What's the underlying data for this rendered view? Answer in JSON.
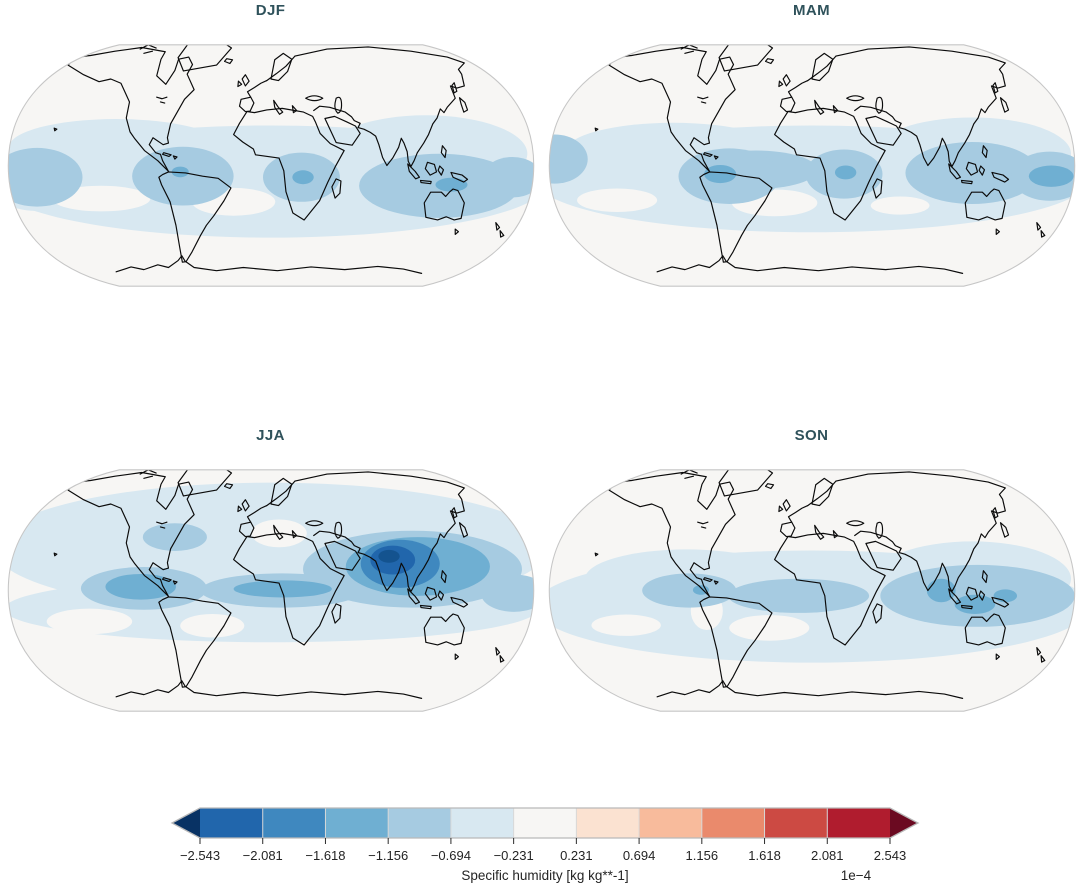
{
  "chart_data": {
    "type": "heatmap",
    "subtype": "filled_contour_world_maps",
    "projection": "robinson",
    "title": "",
    "variable": "Specific humidity",
    "units": "kg kg**-1",
    "scale_factor": "1e-4",
    "contour_levels_1e4": [
      -2.543,
      -2.081,
      -1.618,
      -1.156,
      -0.694,
      -0.231,
      0.231,
      0.694,
      1.156,
      1.618,
      2.081,
      2.543
    ],
    "layout": {
      "title_color": "#2f525b",
      "grid": "2x2",
      "legend_position": "bottom-colorbar"
    },
    "map": {
      "background": "#f7f6f4",
      "outline_color": "#c6c6c6",
      "coastline_color": "#0b0b0b",
      "level_colors": [
        "#f7f6f4",
        "#d8e8f1",
        "#a6cbe1",
        "#6fafd2",
        "#3f88bf",
        "#2166ac",
        "#14538f"
      ]
    },
    "panels": [
      {
        "title": "DJF",
        "features": [
          [
            1,
            500,
            280,
            520,
            105
          ],
          [
            1,
            210,
            215,
            200,
            52
          ],
          [
            1,
            790,
            228,
            190,
            72
          ],
          [
            1,
            60,
            270,
            95,
            65
          ],
          [
            0,
            430,
            318,
            78,
            26
          ],
          [
            0,
            182,
            312,
            92,
            24
          ],
          [
            2,
            62,
            272,
            85,
            55
          ],
          [
            2,
            335,
            270,
            95,
            55
          ],
          [
            2,
            557,
            272,
            72,
            46
          ],
          [
            2,
            815,
            288,
            150,
            60
          ],
          [
            2,
            952,
            272,
            55,
            38
          ],
          [
            3,
            330,
            262,
            16,
            10
          ],
          [
            3,
            560,
            272,
            20,
            13
          ],
          [
            3,
            838,
            286,
            30,
            13
          ]
        ]
      },
      {
        "title": "MAM",
        "features": [
          [
            1,
            500,
            275,
            520,
            100
          ],
          [
            1,
            240,
            222,
            200,
            52
          ],
          [
            1,
            800,
            228,
            185,
            68
          ],
          [
            0,
            430,
            320,
            80,
            25
          ],
          [
            0,
            135,
            315,
            75,
            22
          ],
          [
            0,
            665,
            325,
            55,
            17
          ],
          [
            2,
            18,
            238,
            62,
            46
          ],
          [
            2,
            395,
            258,
            115,
            36
          ],
          [
            2,
            345,
            270,
            95,
            52
          ],
          [
            2,
            560,
            266,
            72,
            46
          ],
          [
            2,
            800,
            264,
            125,
            58
          ],
          [
            2,
            945,
            270,
            72,
            46
          ],
          [
            3,
            328,
            266,
            30,
            17
          ],
          [
            3,
            563,
            263,
            20,
            13
          ],
          [
            3,
            948,
            270,
            42,
            20
          ]
        ]
      },
      {
        "title": "JJA",
        "features": [
          [
            1,
            500,
            170,
            520,
            122
          ],
          [
            1,
            500,
            285,
            500,
            62
          ],
          [
            0,
            515,
            143,
            52,
            26
          ],
          [
            0,
            160,
            308,
            80,
            24
          ],
          [
            0,
            390,
            316,
            60,
            22
          ],
          [
            2,
            320,
            150,
            60,
            26
          ],
          [
            2,
            262,
            246,
            118,
            40
          ],
          [
            2,
            520,
            250,
            152,
            32
          ],
          [
            2,
            765,
            210,
            205,
            72
          ],
          [
            2,
            955,
            255,
            62,
            35
          ],
          [
            3,
            256,
            243,
            66,
            24
          ],
          [
            3,
            522,
            247,
            92,
            16
          ],
          [
            3,
            775,
            205,
            135,
            55
          ],
          [
            4,
            742,
            200,
            74,
            45
          ],
          [
            5,
            728,
            193,
            42,
            27
          ],
          [
            6,
            721,
            186,
            20,
            12
          ]
        ]
      },
      {
        "title": "SON",
        "features": [
          [
            1,
            500,
            280,
            520,
            105
          ],
          [
            1,
            265,
            228,
            190,
            55
          ],
          [
            1,
            800,
            228,
            185,
            70
          ],
          [
            0,
            420,
            320,
            75,
            24
          ],
          [
            0,
            152,
            315,
            65,
            20
          ],
          [
            0,
            303,
            288,
            30,
            36
          ],
          [
            2,
            270,
            250,
            88,
            32
          ],
          [
            2,
            475,
            260,
            132,
            32
          ],
          [
            2,
            810,
            260,
            182,
            58
          ],
          [
            3,
            292,
            249,
            15,
            9
          ],
          [
            3,
            742,
            250,
            27,
            22
          ],
          [
            3,
            805,
            276,
            38,
            18
          ],
          [
            3,
            862,
            260,
            22,
            12
          ]
        ]
      }
    ],
    "colorbar": {
      "orientation": "horizontal",
      "extend": "both",
      "colors": [
        "#083264",
        "#2166ac",
        "#3f88bf",
        "#6fafd2",
        "#a6cbe1",
        "#d8e8f1",
        "#f7f6f4",
        "#fbe2d1",
        "#f8bb9c",
        "#ea8a6c",
        "#cc4a43",
        "#b01c2e",
        "#6b0a21"
      ],
      "tick_labels": [
        "−2.543",
        "−2.081",
        "−1.618",
        "−1.156",
        "−0.694",
        "−0.231",
        "0.231",
        "0.694",
        "1.156",
        "1.618",
        "2.081",
        "2.543"
      ],
      "axis_label": "Specific humidity [kg kg**-1]",
      "scale_label": "1e−4",
      "tick_color": "#2b2b2b",
      "label_color": "#242424",
      "divider_color": "#d8d8d8",
      "outline_color": "#b9b9b9"
    }
  }
}
